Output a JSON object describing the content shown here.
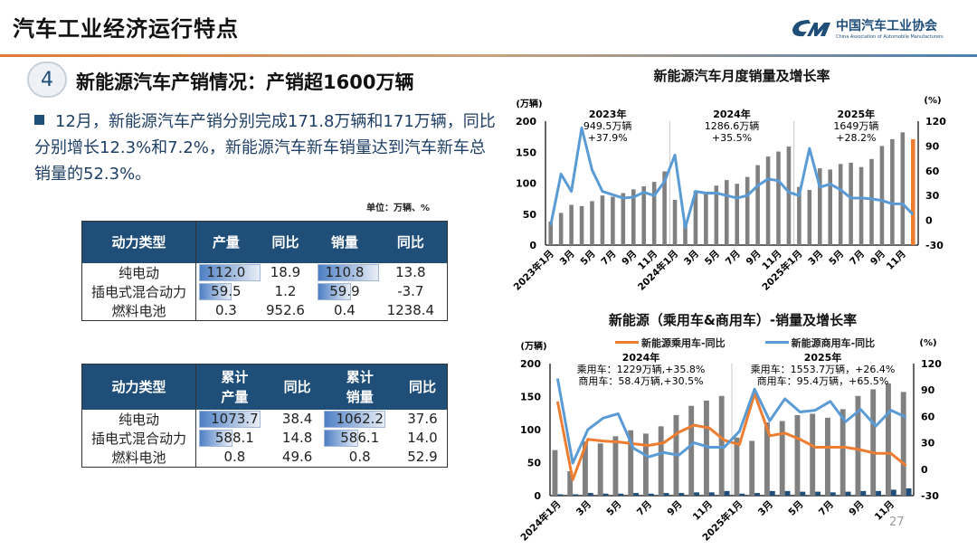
{
  "header": {
    "title": "汽车工业经济运行特点",
    "logo_cn": "中国汽车工业协会",
    "logo_en": "China Association of Automobile Manufacturers"
  },
  "section": {
    "number": "4",
    "heading": "新能源汽车产销情况：产销超1600万辆"
  },
  "bullet": "12月，新能源汽车产销分别完成171.8万辆和171万辆，同比分别增长12.3%和7.2%，新能源汽车新车销量达到汽车新车总销量的52.3%。",
  "unit": "单位：万辆、%",
  "table_month": {
    "headers": [
      "动力类型",
      "产量",
      "同比",
      "销量",
      "同比"
    ],
    "rows": [
      [
        "纯电动",
        "112.0",
        "18.9",
        "110.8",
        "13.8"
      ],
      [
        "插电式混合动力",
        "59.5",
        "1.2",
        "59.9",
        "-3.7"
      ],
      [
        "燃料电池",
        "0.3",
        "952.6",
        "0.4",
        "1238.4"
      ]
    ],
    "bar_fraction": [
      [
        1.0,
        1.0
      ],
      [
        0.53,
        0.54
      ],
      [
        0,
        0
      ]
    ]
  },
  "table_cum": {
    "headers": [
      "动力类型",
      "累计\n产量",
      "同比",
      "累计\n销量",
      "同比"
    ],
    "rows": [
      [
        "纯电动",
        "1073.7",
        "38.4",
        "1062.2",
        "37.6"
      ],
      [
        "插电式混合动力",
        "588.1",
        "14.8",
        "586.1",
        "14.0"
      ],
      [
        "燃料电池",
        "0.8",
        "49.6",
        "0.8",
        "52.9"
      ]
    ],
    "bar_fraction": [
      [
        1.0,
        1.0
      ],
      [
        0.55,
        0.55
      ],
      [
        0,
        0
      ]
    ]
  },
  "colors": {
    "accent": "#1f4e79",
    "bar_grey": "#808080",
    "line_blue": "#5b9bd5",
    "line_orange": "#ed7d31",
    "highlight_orange": "#ed7d31"
  },
  "page_number": "27",
  "chart_data": [
    {
      "type": "bar+line",
      "title": "新能源汽车月度销量及增长率",
      "ylabel": "(万辆)",
      "y2label": "(%)",
      "ylim": [
        0,
        200
      ],
      "y2lim": [
        -30,
        120
      ],
      "yticks": [
        "0",
        "50",
        "100",
        "150",
        "200"
      ],
      "y2ticks": [
        "-30",
        "0",
        "30",
        "60",
        "90",
        "120"
      ],
      "categories": [
        "2023年1月",
        "2月",
        "3月",
        "4月",
        "5月",
        "6月",
        "7月",
        "8月",
        "9月",
        "10月",
        "11月",
        "12月",
        "2024年1月",
        "2月",
        "3月",
        "4月",
        "5月",
        "6月",
        "7月",
        "8月",
        "9月",
        "10月",
        "11月",
        "12月",
        "2025年1月",
        "2月",
        "3月",
        "4月",
        "5月",
        "6月",
        "7月",
        "8月",
        "9月",
        "10月",
        "11月",
        "12月"
      ],
      "series": [
        {
          "kind": "bar",
          "axis": "left",
          "values": [
            38,
            52,
            65,
            63,
            71,
            80,
            78,
            84,
            90,
            95,
            102,
            119,
            73,
            39,
            88,
            85,
            96,
            105,
            99,
            110,
            129,
            143,
            151,
            159,
            94,
            89,
            124,
            122,
            131,
            133,
            126,
            139,
            160,
            171,
            182,
            171
          ],
          "highlight_last": true
        },
        {
          "kind": "line",
          "axis": "right",
          "values": [
            -6,
            56,
            35,
            112,
            61,
            35,
            31,
            27,
            28,
            34,
            30,
            47,
            79,
            -9,
            35,
            33,
            33,
            30,
            27,
            30,
            42,
            50,
            48,
            34,
            30,
            87,
            40,
            44,
            37,
            27,
            27,
            26,
            24,
            20,
            20,
            7
          ]
        }
      ],
      "annotations": [
        [
          "2023年",
          "949.5万辆",
          "+37.9%"
        ],
        [
          "2024年",
          "1286.6万辆",
          "+35.5%"
        ],
        [
          "2025年",
          "1649万辆",
          "+28.2%"
        ]
      ],
      "grid": false
    },
    {
      "type": "bar+line",
      "title": "新能源（乘用车&商用车）-销量及增长率",
      "ylabel": "(万辆)",
      "y2label": "(%)",
      "ylim": [
        0,
        200
      ],
      "y2lim": [
        -30,
        120
      ],
      "yticks": [
        "0",
        "50",
        "100",
        "150",
        "200"
      ],
      "y2ticks": [
        "-30",
        "0",
        "30",
        "60",
        "90",
        "120"
      ],
      "categories": [
        "2024年1月",
        "2月",
        "3月",
        "4月",
        "5月",
        "6月",
        "7月",
        "8月",
        "9月",
        "10月",
        "11月",
        "12月",
        "2025年1月",
        "2月",
        "3月",
        "4月",
        "5月",
        "6月",
        "7月",
        "8月",
        "9月",
        "10月",
        "11月",
        "12月"
      ],
      "series": [
        {
          "kind": "bar",
          "axis": "left",
          "values": [
            69,
            37,
            82,
            79,
            90,
            99,
            94,
            105,
            122,
            136,
            144,
            151,
            88,
            83,
            111,
            113,
            122,
            124,
            118,
            131,
            151,
            161,
            170,
            157
          ]
        },
        {
          "kind": "bar",
          "axis": "left",
          "values": [
            2,
            2,
            4,
            3,
            3,
            4,
            3,
            4,
            4,
            5,
            5,
            7,
            3,
            4,
            7,
            7,
            6,
            6,
            5,
            6,
            7,
            7,
            9,
            11
          ]
        },
        {
          "kind": "line",
          "axis": "right",
          "name": "新能源乘用车-同比",
          "values": [
            77,
            -12,
            34,
            32,
            31,
            29,
            27,
            30,
            42,
            50,
            47,
            33,
            28,
            86,
            38,
            41,
            34,
            25,
            25,
            25,
            22,
            18,
            18,
            4
          ]
        },
        {
          "kind": "line",
          "axis": "right",
          "name": "新能源商用车-同比",
          "values": [
            103,
            7,
            45,
            58,
            63,
            24,
            14,
            19,
            16,
            30,
            25,
            25,
            43,
            91,
            55,
            80,
            65,
            67,
            77,
            54,
            68,
            49,
            67,
            59
          ]
        }
      ],
      "annotations": [
        [
          "2024年",
          "乘用车：1229万辆,+35.8%",
          "商用车：58.4万辆,+30.5%"
        ],
        [
          "2025年",
          "乘用车：1553.7万辆，+26.4%",
          "商用车：95.4万辆，+65.5%"
        ]
      ],
      "legend": "top",
      "grid": false
    }
  ]
}
